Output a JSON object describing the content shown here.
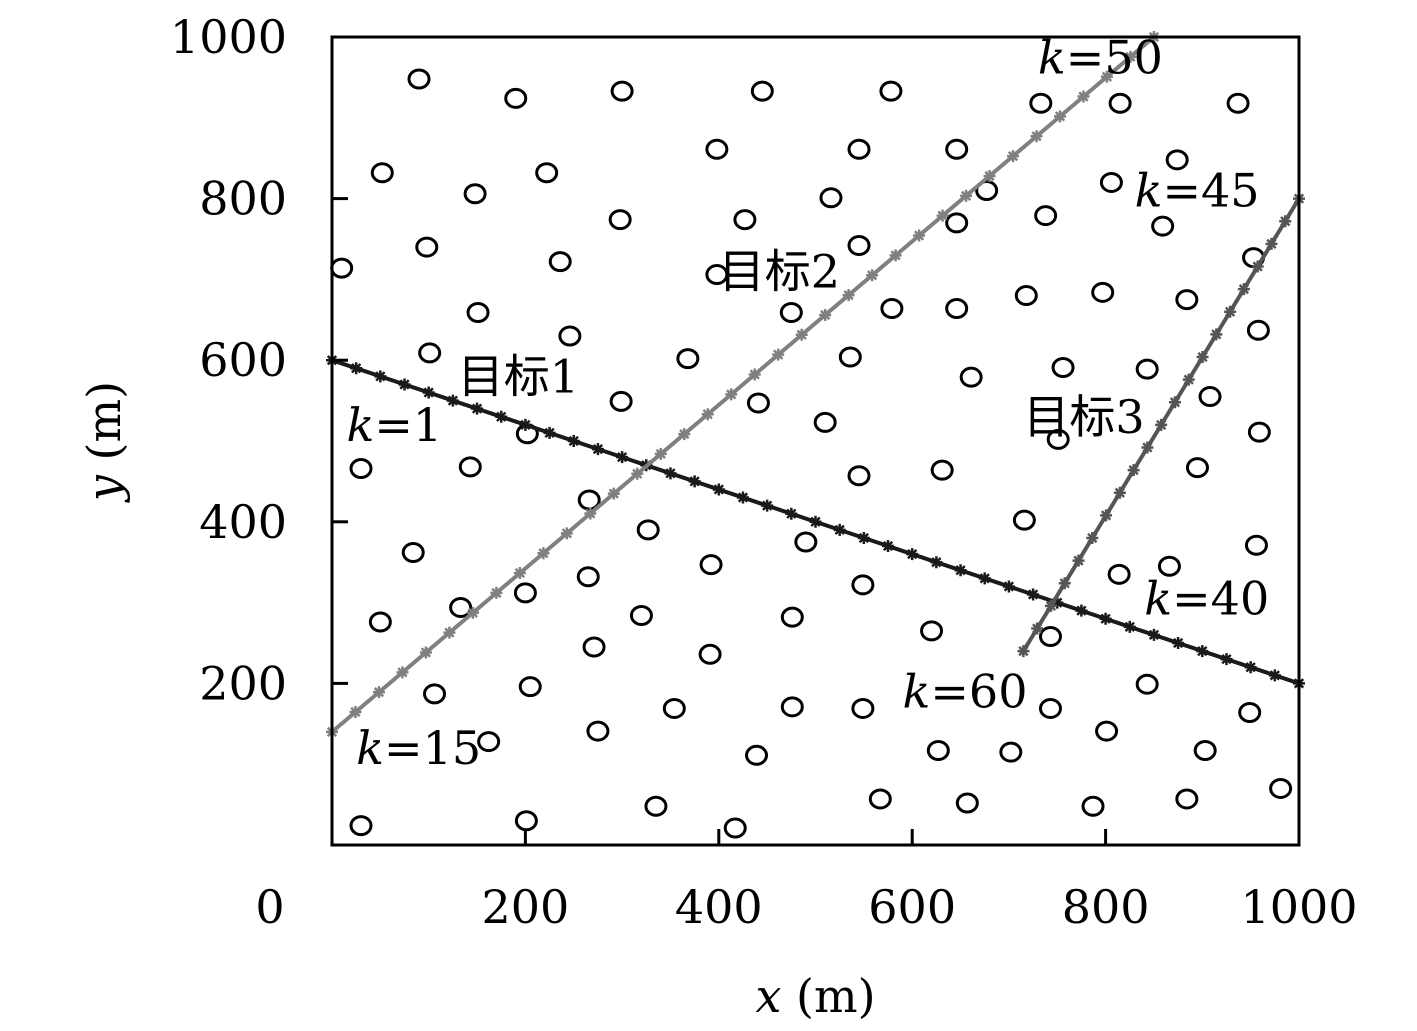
{
  "chart_data": {
    "type": "scatter",
    "title": "",
    "xlabel": {
      "var": "x",
      "unit": "(m)"
    },
    "ylabel": {
      "var": "y",
      "unit": "(m)"
    },
    "xlim": [
      0,
      1000
    ],
    "ylim": [
      0,
      1000
    ],
    "x_ticks": [
      200,
      400,
      600,
      800,
      1000
    ],
    "x_tick_labels": [
      "200",
      "400",
      "600",
      "800",
      "1000"
    ],
    "y_ticks": [
      200,
      400,
      600,
      800,
      1000
    ],
    "y_tick_labels": [
      "200",
      "400",
      "600",
      "800",
      "1000"
    ],
    "origin_label": "0",
    "grid": false,
    "sensors": [
      [
        90,
        948
      ],
      [
        190,
        924
      ],
      [
        300,
        933
      ],
      [
        445,
        933
      ],
      [
        578,
        933
      ],
      [
        733,
        918
      ],
      [
        815,
        918
      ],
      [
        937,
        918
      ],
      [
        52,
        832
      ],
      [
        148,
        806
      ],
      [
        222,
        832
      ],
      [
        398,
        861
      ],
      [
        545,
        861
      ],
      [
        646,
        861
      ],
      [
        874,
        848
      ],
      [
        516,
        801
      ],
      [
        677,
        810
      ],
      [
        806,
        820
      ],
      [
        298,
        774
      ],
      [
        427,
        774
      ],
      [
        646,
        770
      ],
      [
        738,
        779
      ],
      [
        859,
        766
      ],
      [
        98,
        740
      ],
      [
        236,
        722
      ],
      [
        10,
        714
      ],
      [
        398,
        706
      ],
      [
        545,
        742
      ],
      [
        151,
        659
      ],
      [
        475,
        659
      ],
      [
        579,
        664
      ],
      [
        646,
        664
      ],
      [
        718,
        680
      ],
      [
        797,
        684
      ],
      [
        884,
        675
      ],
      [
        953,
        727
      ],
      [
        246,
        630
      ],
      [
        368,
        602
      ],
      [
        101,
        609
      ],
      [
        536,
        604
      ],
      [
        661,
        579
      ],
      [
        756,
        591
      ],
      [
        843,
        589
      ],
      [
        958,
        637
      ],
      [
        299,
        549
      ],
      [
        441,
        547
      ],
      [
        510,
        523
      ],
      [
        908,
        555
      ],
      [
        959,
        511
      ],
      [
        30,
        466
      ],
      [
        143,
        468
      ],
      [
        202,
        509
      ],
      [
        545,
        457
      ],
      [
        631,
        464
      ],
      [
        751,
        502
      ],
      [
        895,
        467
      ],
      [
        266,
        427
      ],
      [
        327,
        390
      ],
      [
        490,
        375
      ],
      [
        716,
        402
      ],
      [
        956,
        371
      ],
      [
        84,
        362
      ],
      [
        200,
        312
      ],
      [
        265,
        332
      ],
      [
        392,
        347
      ],
      [
        549,
        322
      ],
      [
        814,
        335
      ],
      [
        866,
        345
      ],
      [
        50,
        276
      ],
      [
        133,
        294
      ],
      [
        320,
        284
      ],
      [
        476,
        282
      ],
      [
        620,
        265
      ],
      [
        743,
        258
      ],
      [
        271,
        245
      ],
      [
        391,
        236
      ],
      [
        106,
        187
      ],
      [
        205,
        196
      ],
      [
        843,
        199
      ],
      [
        162,
        128
      ],
      [
        275,
        141
      ],
      [
        354,
        169
      ],
      [
        439,
        111
      ],
      [
        476,
        171
      ],
      [
        549,
        169
      ],
      [
        627,
        117
      ],
      [
        702,
        115
      ],
      [
        743,
        169
      ],
      [
        801,
        141
      ],
      [
        903,
        117
      ],
      [
        949,
        164
      ],
      [
        30,
        24
      ],
      [
        201,
        30
      ],
      [
        335,
        48
      ],
      [
        417,
        21
      ],
      [
        567,
        57
      ],
      [
        657,
        52
      ],
      [
        787,
        48
      ],
      [
        884,
        57
      ],
      [
        981,
        70
      ]
    ],
    "series": [
      {
        "name": "目标1",
        "x": [
          0,
          1000
        ],
        "y": [
          600,
          200
        ],
        "color": "#1a1a1a",
        "n_markers": 40
      },
      {
        "name": "目标2",
        "x": [
          0,
          850
        ],
        "y": [
          140,
          1000
        ],
        "color": "#808080",
        "n_markers": 35
      },
      {
        "name": "目标3",
        "x": [
          715,
          1000
        ],
        "y": [
          240,
          800
        ],
        "color": "#555555",
        "n_markers": 20
      }
    ],
    "annotations": [
      {
        "text_var": "k",
        "text_rest": "=50",
        "x": 730,
        "y": 955
      },
      {
        "text_var": "k",
        "text_rest": "=45",
        "x": 830,
        "y": 790
      },
      {
        "text": "目标2",
        "x": 400,
        "y": 690
      },
      {
        "text": "目标1",
        "x": 130,
        "y": 560
      },
      {
        "text_var": "k",
        "text_rest": "=1",
        "x": 15,
        "y": 500
      },
      {
        "text": "目标3",
        "x": 715,
        "y": 510
      },
      {
        "text_var": "k",
        "text_rest": "=40",
        "x": 840,
        "y": 285
      },
      {
        "text_var": "k",
        "text_rest": "=60",
        "x": 590,
        "y": 170
      },
      {
        "text_var": "k",
        "text_rest": "=15",
        "x": 25,
        "y": 100
      }
    ]
  }
}
